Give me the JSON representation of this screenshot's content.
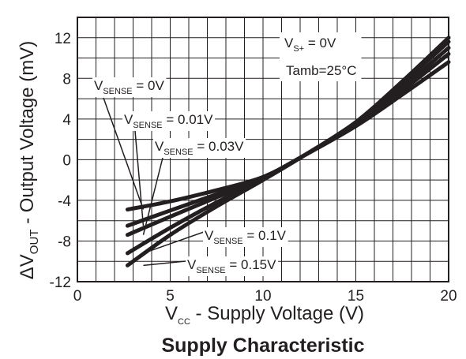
{
  "chart_data": {
    "type": "line",
    "title": "Supply Characteristic",
    "xlabel": {
      "main": "V",
      "sub": "CC",
      "rest": " - Supply Voltage (V)"
    },
    "ylabel": {
      "prefix": "ΔV",
      "sub": "OUT",
      "rest": " - Output Voltage (mV)"
    },
    "xlim": [
      0,
      20
    ],
    "ylim": [
      -12,
      14
    ],
    "x_ticks": [
      0,
      5,
      10,
      15,
      20
    ],
    "y_ticks": [
      12,
      8,
      4,
      0,
      -4,
      -8,
      -12
    ],
    "grid": true,
    "x_grid_step": 1,
    "y_grid_step": 2,
    "conditions": [
      {
        "main": "V",
        "sub": "S+",
        "rest": " = 0V"
      },
      {
        "main": "Tamb=25°C",
        "sub": "",
        "rest": ""
      }
    ],
    "series": [
      {
        "name": "0V",
        "x": [
          2.7,
          5,
          7.5,
          10,
          12.2,
          15,
          17.5,
          20
        ],
        "y": [
          -4.9,
          -4.1,
          -3.0,
          -1.7,
          0.4,
          3.3,
          6.4,
          9.6
        ]
      },
      {
        "name": "0.01V",
        "x": [
          2.7,
          5,
          7.5,
          10,
          12.2,
          15,
          17.5,
          20
        ],
        "y": [
          -6.5,
          -5.0,
          -3.4,
          -1.8,
          0.4,
          3.4,
          6.8,
          10.4
        ]
      },
      {
        "name": "0.03V",
        "x": [
          2.7,
          5,
          7.5,
          10,
          12.2,
          15,
          17.5,
          20
        ],
        "y": [
          -7.4,
          -5.6,
          -3.7,
          -1.8,
          0.4,
          3.5,
          7.1,
          11.0
        ]
      },
      {
        "name": "0.1V",
        "x": [
          2.7,
          5,
          7.5,
          10,
          12.2,
          15,
          17.5,
          20
        ],
        "y": [
          -9.2,
          -6.7,
          -4.2,
          -1.9,
          0.4,
          3.6,
          7.5,
          11.6
        ]
      },
      {
        "name": "0.15V",
        "x": [
          2.7,
          5,
          7.5,
          10,
          12.2,
          15,
          17.5,
          20
        ],
        "y": [
          -10.4,
          -7.4,
          -4.6,
          -2.0,
          0.4,
          3.7,
          7.7,
          12.0
        ]
      }
    ],
    "series_labels": [
      {
        "main": "V",
        "sub": "SENSE",
        "rest": " = 0V"
      },
      {
        "main": "V",
        "sub": "SENSE",
        "rest": " = 0.01V"
      },
      {
        "main": "V",
        "sub": "SENSE",
        "rest": " = 0.03V"
      },
      {
        "main": "V",
        "sub": "SENSE",
        "rest": " = 0.1V"
      },
      {
        "main": "V",
        "sub": "SENSE",
        "rest": " = 0.15V"
      }
    ],
    "colors": {
      "line": "#231f20",
      "grid": "#231f20",
      "label_bg": "#ffffff"
    }
  }
}
